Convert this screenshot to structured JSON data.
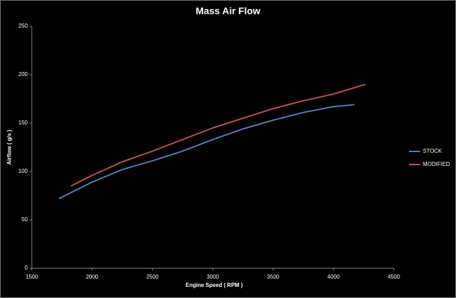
{
  "chart_data": {
    "type": "line",
    "title": "Mass Air Flow",
    "x_label": "Engine Speed ( RPM )",
    "y_label": "Airflow ( g/s )",
    "xlim": [
      1500,
      4500
    ],
    "xticks": [
      1500,
      2000,
      2500,
      3000,
      3500,
      4000,
      4500
    ],
    "ylim": [
      0,
      250
    ],
    "yticks": [
      0,
      50,
      100,
      150,
      200,
      250
    ],
    "legend": "right",
    "series": [
      {
        "name": "STOCK",
        "color": "#4f81bd",
        "x": [
          1725,
          2000,
          2250,
          2500,
          2750,
          3000,
          3250,
          3500,
          3750,
          4000,
          4175
        ],
        "values": [
          72,
          89,
          102,
          111,
          121,
          133,
          144,
          153,
          161,
          167,
          169
        ]
      },
      {
        "name": "MODIFIED",
        "color": "#c0504d",
        "x": [
          1825,
          2000,
          2250,
          2500,
          2750,
          3000,
          3250,
          3500,
          3750,
          4000,
          4265
        ],
        "values": [
          85,
          96,
          110,
          121,
          133,
          145,
          155,
          165,
          173,
          180,
          190
        ]
      }
    ]
  }
}
